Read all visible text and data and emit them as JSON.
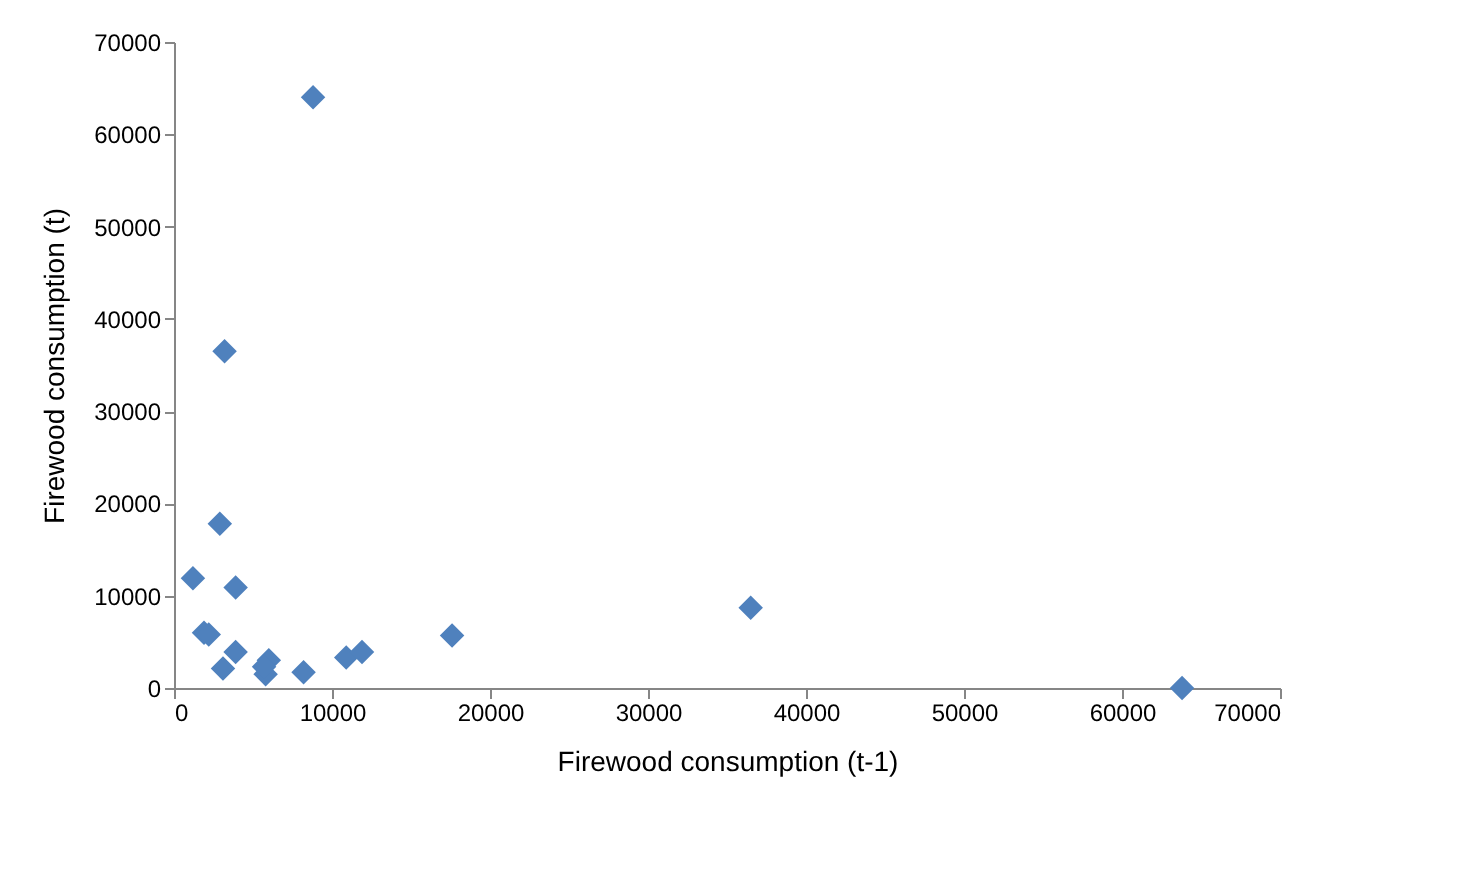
{
  "chart_data": {
    "type": "scatter",
    "xlabel": "Firewood consumption (t-1)",
    "ylabel": "Firewood consumption (t)",
    "x": [
      8800,
      3200,
      2900,
      1200,
      3900,
      1900,
      2200,
      3900,
      3100,
      6000,
      5800,
      5700,
      8200,
      10900,
      11900,
      17600,
      36500,
      63800
    ],
    "series": [
      {
        "color": "#4f81bd",
        "values": [
          64000,
          36500,
          17800,
          11900,
          10900,
          6000,
          5800,
          3900,
          2100,
          3000,
          1500,
          2300,
          1700,
          3300,
          3900,
          5700,
          8700,
          0
        ]
      }
    ],
    "xlim": [
      0,
      70000
    ],
    "xticks": [
      0,
      10000,
      20000,
      30000,
      40000,
      50000,
      60000,
      70000
    ],
    "ylim": [
      0,
      70000
    ],
    "yticks": [
      0,
      10000,
      20000,
      30000,
      40000,
      50000,
      60000,
      70000
    ],
    "grid": false,
    "marker": "diamond"
  }
}
